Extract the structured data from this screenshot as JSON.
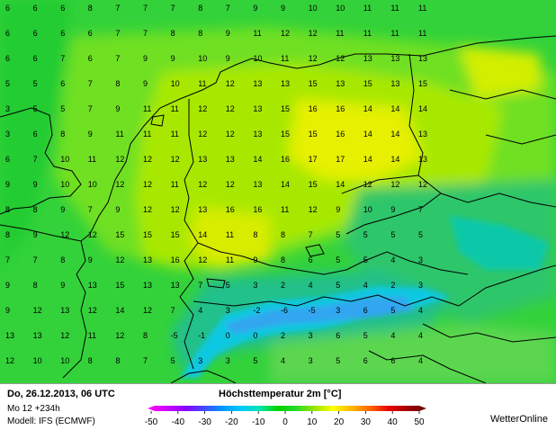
{
  "header": {
    "date_label": "Do, 26.12.2013, 06 UTC",
    "run_label": "Mo 12 +234h",
    "model_label": "Modell: IFS (ECMWF)",
    "title": "Höchsttemperatur  2m [°C]",
    "brand": "WetterOnline"
  },
  "legend": {
    "ticks": [
      "-50",
      "-40",
      "-30",
      "-20",
      "-10",
      "0",
      "10",
      "20",
      "30",
      "40",
      "50"
    ],
    "colors": [
      "#ff00ff",
      "#d000ff",
      "#8c00ff",
      "#4646ff",
      "#0096ff",
      "#00c8ff",
      "#00e6b4",
      "#00d200",
      "#28dc28",
      "#9be600",
      "#ffff00",
      "#ffb400",
      "#ff6400",
      "#e60000",
      "#a00000",
      "#640000"
    ]
  },
  "map": {
    "value_rows": [
      "6 6 6 8 7 7 7 8 7 9 9 10 10 11 11 11",
      "6 6 6 6 7 7 8 8 9 11 12 12 11 11 11 11",
      "6 6 7 6 7 9 9 10 9 10 11 12 12 13 13 13",
      "5 5 6 7 8 9 10 11 12 13 13 15 13 15 13 15",
      "3 5 5 7 9 11 11 12 12 13 15 16 16 14 14 14",
      "3 6 8 9 11 11 11 12 12 13 15 15 16 14 14 13",
      "6 7 10 11 12 12 12 13 13 14 16 17 17 14 14 13",
      "9 9 10 10 12 12 11 12 12 13 14 15 14 12 12 12",
      "8 8 9 7 9 12 12 13 16 16 11 12 9 10 9 7",
      "8 9 12 12 15 15 15 14 11 8 8 7 5 5 5 5",
      "7 7 8 9 12 13 16 12 11 9 8 6 5 5 4 3",
      "9 8 9 13 15 13 13 7 5 3 2 4 5 4 2 3",
      "9 12 13 12 14 12 7 4 3 -2 -6 -5 3 6 5 4",
      "13 13 12 11 12 8 -5 -1 0 0 2 3 6 5 4 4",
      "12 10 10 8 8 7 5 3 3 5 4 3 5 6 6 4"
    ]
  }
}
